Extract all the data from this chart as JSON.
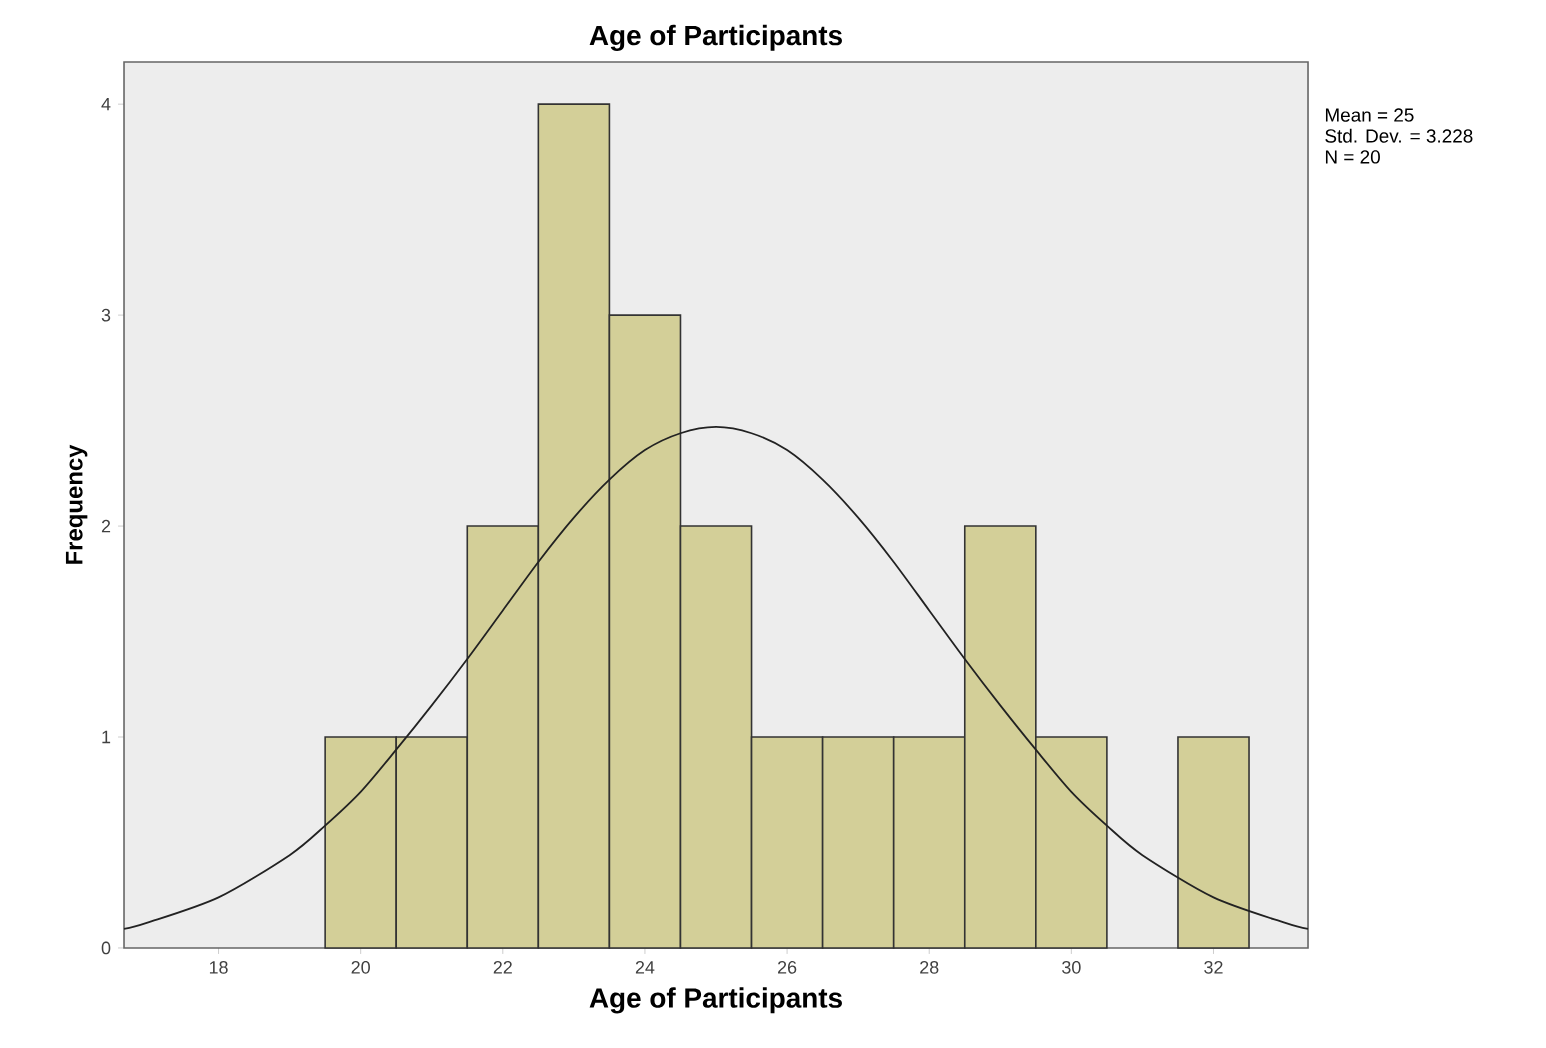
{
  "chart_data": {
    "type": "histogram",
    "title": "Age of Participants",
    "xlabel": "Age of Participants",
    "ylabel": "Frequency",
    "annotations": [
      "Mean = 25",
      "Std. Dev. = 3.228",
      "N = 20"
    ],
    "xlim": [
      16.67,
      33.33
    ],
    "ylim": [
      0,
      4.2
    ],
    "xticks": [
      18,
      20,
      22,
      24,
      26,
      28,
      30,
      32
    ],
    "yticks": [
      0,
      1,
      2,
      3,
      4
    ],
    "grid": false,
    "series": [
      {
        "type": "histogram",
        "color": "#d3cf98",
        "bins": [
          19.5,
          20.5,
          21.5,
          22.5,
          23.5,
          24.5,
          25.5,
          26.5,
          27.5,
          28.5,
          29.5,
          30.5,
          31.5,
          32.5
        ],
        "values": [
          1,
          1,
          2,
          4,
          3,
          2,
          1,
          1,
          1,
          2,
          1,
          0,
          1
        ]
      },
      {
        "type": "line",
        "color": "#222222",
        "x": [
          16.67,
          17,
          18,
          19,
          19.5,
          20,
          20.5,
          21,
          21.5,
          22,
          22.5,
          23,
          23.5,
          24,
          24.5,
          25,
          25.5,
          26,
          26.5,
          27,
          27.5,
          28,
          28.5,
          29,
          29.5,
          30,
          30.5,
          31,
          32,
          33,
          33.33
        ],
        "values": [
          0.09,
          0.12,
          0.24,
          0.44,
          0.58,
          0.74,
          0.94,
          1.15,
          1.37,
          1.6,
          1.83,
          2.04,
          2.22,
          2.36,
          2.44,
          2.47,
          2.44,
          2.36,
          2.22,
          2.04,
          1.83,
          1.6,
          1.37,
          1.15,
          0.94,
          0.74,
          0.58,
          0.44,
          0.24,
          0.12,
          0.09
        ]
      }
    ]
  }
}
